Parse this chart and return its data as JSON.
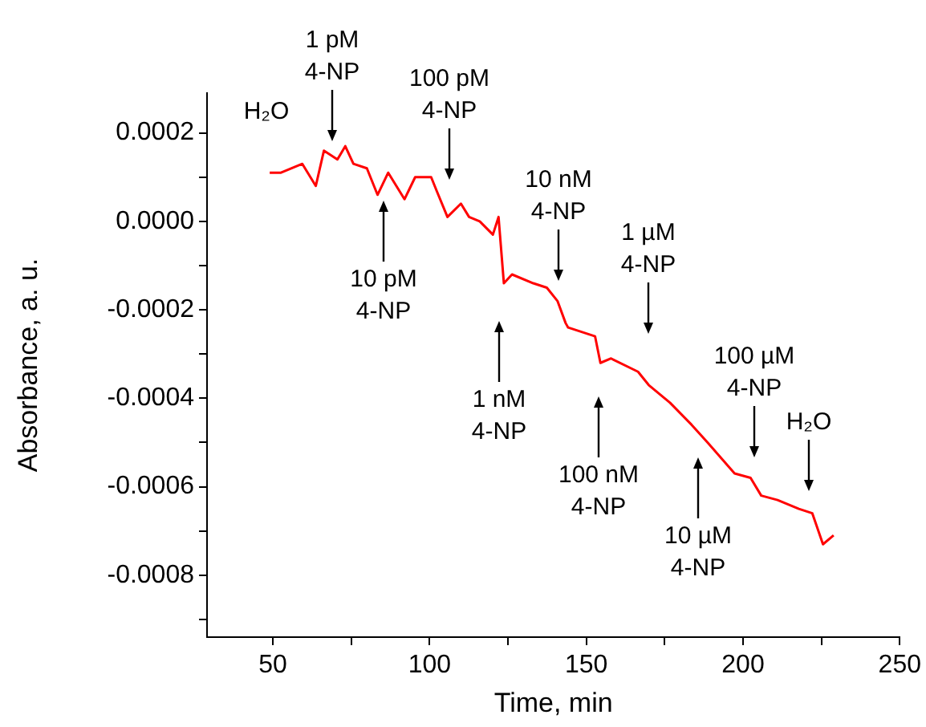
{
  "chart_data": {
    "type": "line",
    "xlabel": "Time, min",
    "ylabel": "Absorbance, a. u.",
    "xlim": [
      29,
      250
    ],
    "xticks": [
      50,
      {
        "value": 75,
        "label": null
      },
      100,
      {
        "value": 125,
        "label": null
      },
      150,
      {
        "value": 175,
        "label": null
      },
      200,
      {
        "value": 225,
        "label": null
      },
      250
    ],
    "ylim": [
      -0.00094,
      0.00029
    ],
    "yticks": [
      {
        "value": 0.0002,
        "label": "0.0002"
      },
      {
        "value": 0.0001,
        "label": null
      },
      {
        "value": 0,
        "label": "0.0000"
      },
      {
        "value": -0.0001,
        "label": null
      },
      {
        "value": -0.0002,
        "label": "-0.0002"
      },
      {
        "value": -0.0003,
        "label": null
      },
      {
        "value": -0.0004,
        "label": "-0.0004"
      },
      {
        "value": -0.0005,
        "label": null
      },
      {
        "value": -0.0006,
        "label": "-0.0006"
      },
      {
        "value": -0.0007,
        "label": null
      },
      {
        "value": -0.0008,
        "label": "-0.0008"
      },
      {
        "value": -0.0009,
        "label": null
      }
    ],
    "grid": false,
    "legend": false,
    "marker": "none",
    "line_style": "solid",
    "series": [
      {
        "color": "#ff0000",
        "x": [
          49,
          52.6,
          59.4,
          63.7,
          66.3,
          70.6,
          73.1,
          75.7,
          80,
          83.4,
          86.8,
          92,
          95.4,
          100.5,
          102.2,
          105.7,
          110,
          112.6,
          116,
          120.2,
          122,
          123.7,
          126.3,
          133.1,
          137.4,
          140.8,
          143.4,
          144.2,
          152.8,
          154.5,
          157.9,
          166.5,
          169.9,
          176.7,
          183.6,
          188.7,
          197.3,
          202.4,
          205.8,
          211,
          217.8,
          222.1,
          225.5,
          228.9
        ],
        "values": [
          0.00011,
          0.00011,
          0.00013,
          8e-05,
          0.00016,
          0.00014,
          0.00017,
          0.00013,
          0.00012,
          6e-05,
          0.00011,
          5e-05,
          0.0001,
          0.0001,
          7e-05,
          1e-05,
          4e-05,
          1e-05,
          0,
          -3e-05,
          1e-05,
          -0.00014,
          -0.00012,
          -0.00014,
          -0.00015,
          -0.00018,
          -0.00023,
          -0.00024,
          -0.00026,
          -0.00032,
          -0.00031,
          -0.00034,
          -0.00037,
          -0.00041,
          -0.00046,
          -0.0005,
          -0.00057,
          -0.00058,
          -0.00062,
          -0.00063,
          -0.00065,
          -0.00066,
          -0.00073,
          -0.00071
        ]
      }
    ],
    "annotations": [
      "H₂O",
      "1 pM\n4-NP",
      "10 pM\n4-NP",
      "100 pM\n4-NP",
      "1 nM\n4-NP",
      "10 nM\n4-NP",
      "100 nM\n4-NP",
      "1 µM\n4-NP",
      "10 µM\n4-NP",
      "100 µM\n4-NP",
      "H₂O"
    ]
  }
}
